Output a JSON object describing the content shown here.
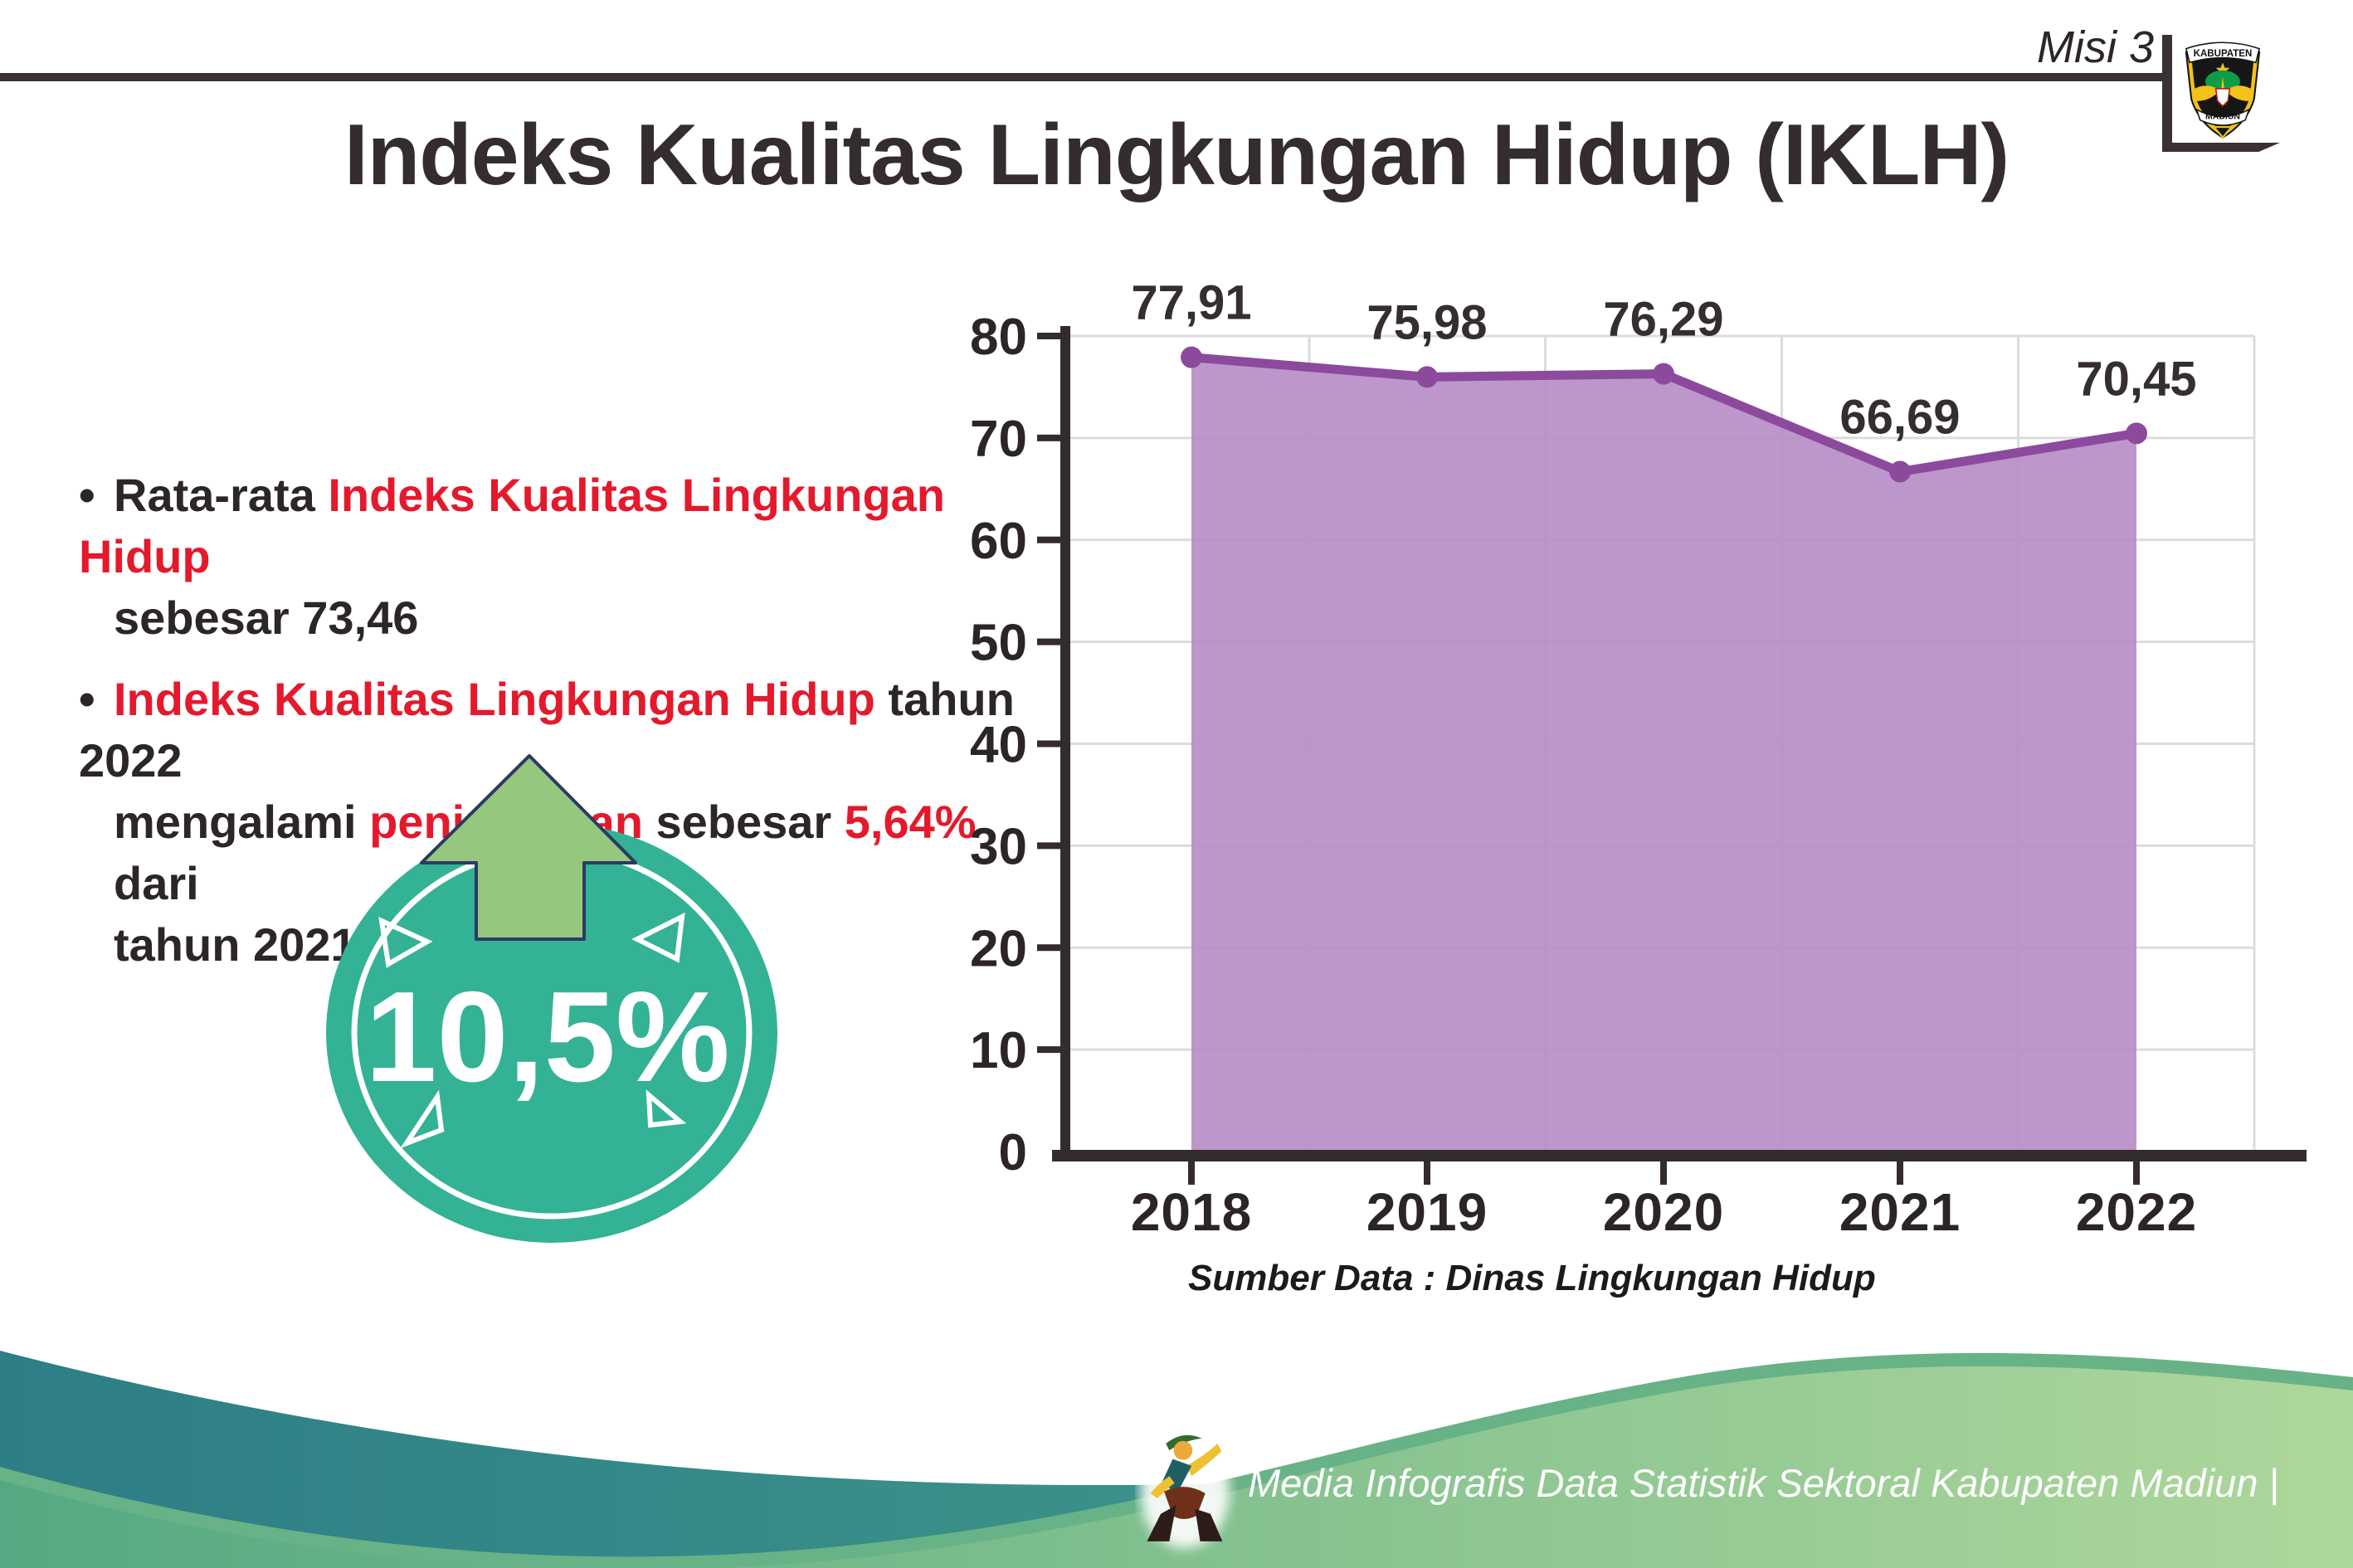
{
  "header": {
    "misi_label": "Misi 3",
    "title": "Indeks Kualitas Lingkungan Hidup (IKLH)"
  },
  "logo": {
    "top_text": "KABUPATEN",
    "bottom_text": "MADIUN"
  },
  "bullets": {
    "bullet_char": "•",
    "items": [
      {
        "lines": [
          [
            {
              "t": "Rata-rata ",
              "c": "dark"
            },
            {
              "t": "Indeks Kualitas Lingkungan Hidup",
              "c": "red"
            }
          ],
          [
            {
              "t": "sebesar 73,46",
              "c": "dark"
            }
          ]
        ]
      },
      {
        "lines": [
          [
            {
              "t": "Indeks Kualitas Lingkungan Hidup",
              "c": "red"
            },
            {
              "t": " tahun 2022",
              "c": "dark"
            }
          ],
          [
            {
              "t": "mengalami ",
              "c": "dark"
            },
            {
              "t": "peningkatan",
              "c": "red"
            },
            {
              "t": " sebesar ",
              "c": "dark"
            },
            {
              "t": "5,64%",
              "c": "red"
            },
            {
              "t": " dari",
              "c": "dark"
            }
          ],
          [
            {
              "t": "tahun 2021",
              "c": "dark"
            }
          ]
        ]
      }
    ]
  },
  "badge": {
    "value": "10,5%"
  },
  "chart_data": {
    "type": "area",
    "categories": [
      "2018",
      "2019",
      "2020",
      "2021",
      "2022"
    ],
    "values": [
      77.91,
      75.98,
      76.29,
      66.69,
      70.45
    ],
    "value_labels": [
      "77,91",
      "75,98",
      "76,29",
      "66,69",
      "70,45"
    ],
    "title": "",
    "xlabel": "",
    "ylabel": "",
    "ylim": [
      0,
      80
    ],
    "ytick_step": 10,
    "grid": true,
    "legend": "none",
    "source_note": "Sumber Data : Dinas Lingkungan Hidup",
    "colors": {
      "fill": "#b68cc5",
      "line": "#8c4a9d",
      "marker": "#8c4a9d",
      "axis": "#332b2c",
      "grid": "#dcdcdc",
      "tick_label": "#2b2526",
      "value_label": "#352e2f"
    }
  },
  "footer": {
    "text": "Media Infografis Data Statistik Sektoral Kabupaten Madiun |"
  },
  "theme": {
    "dark_text": "#2c2627",
    "red_text": "#e4192c",
    "rule": "#3a3132",
    "title": "#342c2d",
    "badge_teal": "#33b296",
    "badge_text": "#ffffff",
    "arrow_green": "#95c77e",
    "arrow_outline": "#2b3a64",
    "wave_teal_left": "#2d7e86",
    "wave_teal_right": "#4aa68c",
    "wave_rim": "#68b287",
    "wave_green_left": "#55a982",
    "wave_green_right": "#aed79b",
    "footer_text": "#ffffff",
    "logo_yellow": "#f2c21a",
    "logo_black": "#161616",
    "logo_green": "#0f9c46"
  }
}
